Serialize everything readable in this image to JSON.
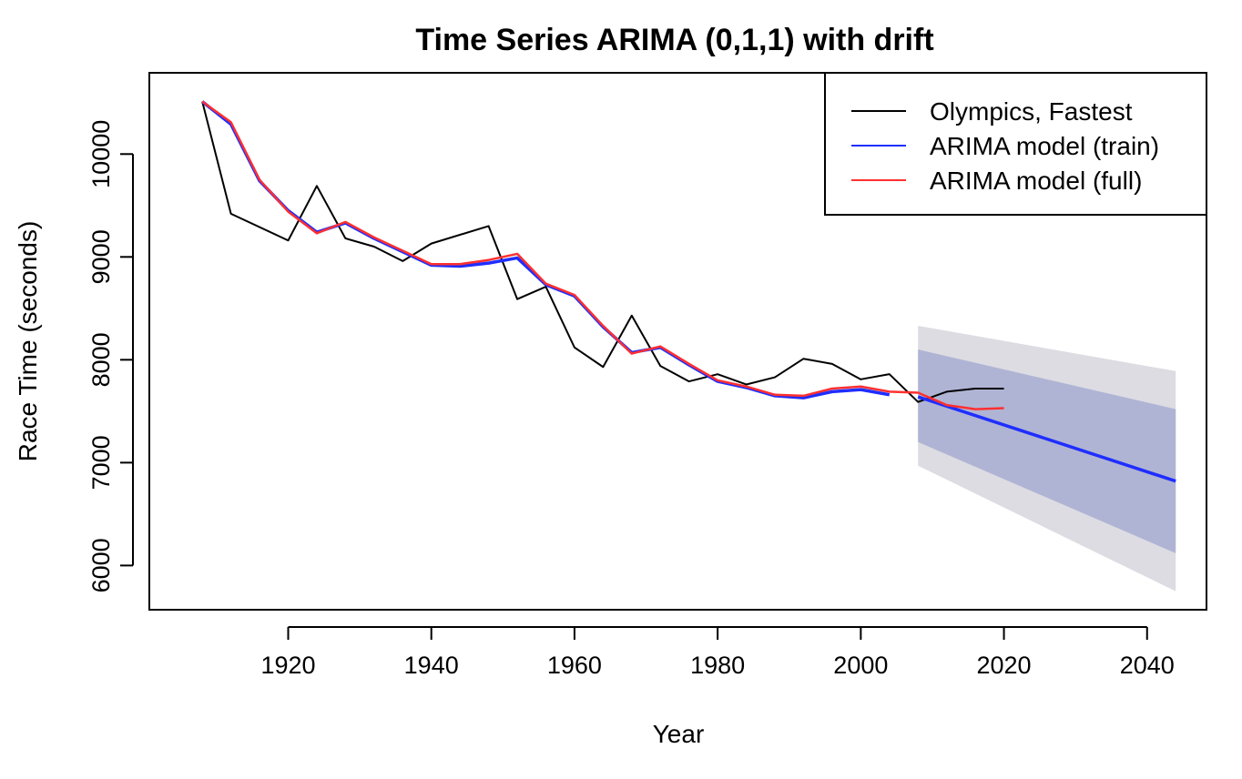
{
  "chart_data": {
    "type": "line",
    "title": "Time Series ARIMA (0,1,1) with drift",
    "xlabel": "Year",
    "ylabel": "Race Time (seconds)",
    "xlim": [
      1900.6,
      2048.3
    ],
    "ylim": [
      5570,
      10790
    ],
    "x_ticks": [
      1920,
      1940,
      1960,
      1980,
      2000,
      2020,
      2040
    ],
    "y_ticks": [
      6000,
      7000,
      8000,
      9000,
      10000
    ],
    "grid": false,
    "legend_position": "top-right",
    "series": [
      {
        "name": "Olympics, Fastest",
        "color": "#000000",
        "x": [
          1908,
          1912,
          1920,
          1924,
          1928,
          1932,
          1936,
          1940,
          1948,
          1952,
          1956,
          1960,
          1964,
          1968,
          1972,
          1976,
          1980,
          1984,
          1988,
          1992,
          1996,
          2000,
          2004,
          2008,
          2012,
          2016,
          2020
        ],
        "y": [
          10510,
          9420,
          9160,
          9690,
          9180,
          9100,
          8960,
          9130,
          9300,
          8590,
          8710,
          8120,
          7930,
          8430,
          7940,
          7790,
          7860,
          7760,
          7830,
          8010,
          7960,
          7810,
          7860,
          7590,
          7690,
          7720,
          7720
        ]
      },
      {
        "name": "ARIMA model (train)",
        "color": "#1f2eff",
        "x": [
          1908,
          1912,
          1916,
          1920,
          1924,
          1928,
          1932,
          1936,
          1940,
          1944,
          1948,
          1952,
          1956,
          1960,
          1964,
          1968,
          1972,
          1976,
          1980,
          1984,
          1988,
          1992,
          1996,
          2000,
          2004
        ],
        "y": [
          10510,
          10290,
          9740,
          9450,
          9240,
          9330,
          9180,
          9050,
          8920,
          8910,
          8940,
          8990,
          8730,
          8620,
          8320,
          8070,
          8120,
          7950,
          7790,
          7730,
          7650,
          7630,
          7690,
          7710,
          7660
        ]
      },
      {
        "name": "ARIMA model (full)",
        "color": "#ff3030",
        "x": [
          1908,
          1912,
          1916,
          1920,
          1924,
          1928,
          1932,
          1936,
          1940,
          1944,
          1948,
          1952,
          1956,
          1960,
          1964,
          1968,
          1972,
          1976,
          1980,
          1984,
          1988,
          1992,
          1996,
          2000,
          2004,
          2008,
          2012,
          2016,
          2020
        ],
        "y": [
          10510,
          10310,
          9750,
          9440,
          9230,
          9340,
          9190,
          9060,
          8930,
          8930,
          8970,
          9030,
          8740,
          8630,
          8330,
          8060,
          8130,
          7960,
          7800,
          7740,
          7660,
          7650,
          7720,
          7740,
          7690,
          7680,
          7560,
          7520,
          7530
        ]
      }
    ],
    "forecast": {
      "name": "ARIMA forecast",
      "line_color": "#1f2eff",
      "x": [
        2008,
        2044
      ],
      "mean": [
        7640,
        6820
      ],
      "band_80": {
        "color": "#b0b4d4",
        "lower": [
          7200,
          6120
        ],
        "upper": [
          8100,
          7520
        ]
      },
      "band_95": {
        "color": "#dcdce2",
        "lower": [
          6970,
          5750
        ],
        "upper": [
          8330,
          7890
        ]
      }
    }
  }
}
